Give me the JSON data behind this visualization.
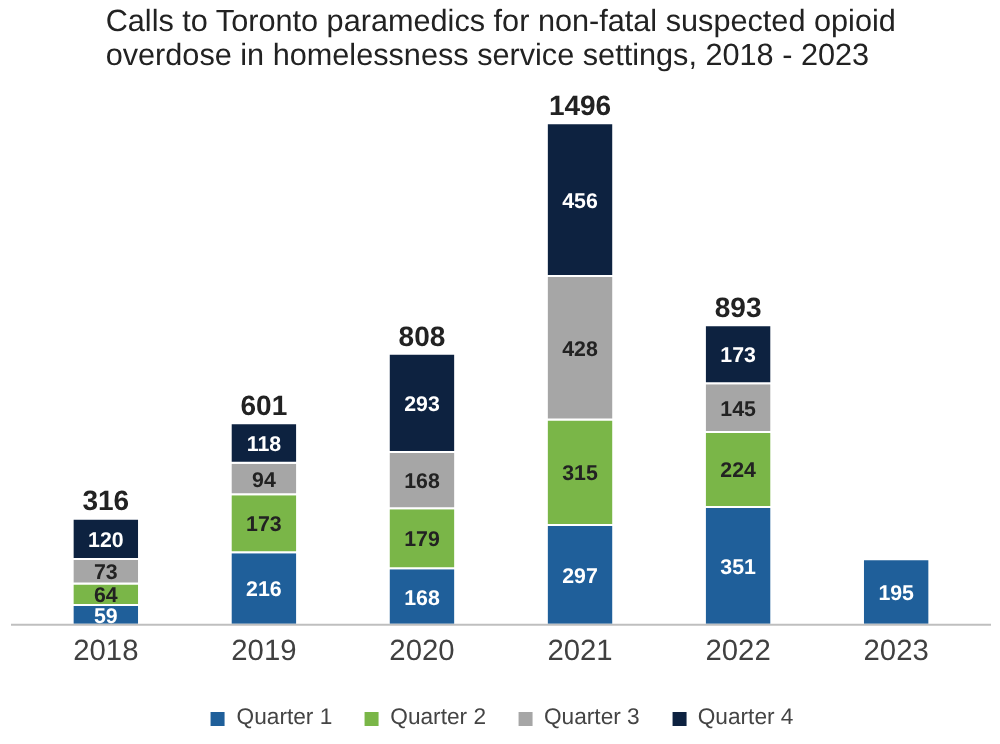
{
  "chart_data": {
    "type": "bar",
    "stacked": true,
    "title": "Calls to Toronto paramedics for non-fatal suspected opioid overdose in homelessness service settings, 2018 - 2023",
    "categories": [
      "2018",
      "2019",
      "2020",
      "2021",
      "2022",
      "2023"
    ],
    "series": [
      {
        "name": "Quarter 1",
        "color": "#1f5f9a",
        "values": [
          59,
          216,
          168,
          297,
          351,
          195
        ]
      },
      {
        "name": "Quarter 2",
        "color": "#7ab648",
        "values": [
          64,
          173,
          179,
          315,
          224,
          null
        ]
      },
      {
        "name": "Quarter 3",
        "color": "#a6a6a6",
        "values": [
          73,
          94,
          168,
          428,
          145,
          null
        ]
      },
      {
        "name": "Quarter 4",
        "color": "#0d2240",
        "values": [
          120,
          118,
          293,
          456,
          173,
          null
        ]
      }
    ],
    "data_labels": true,
    "totals": [
      "316",
      "601",
      "808",
      "1496",
      "893",
      null
    ],
    "legend": "bottom",
    "grid": false
  }
}
